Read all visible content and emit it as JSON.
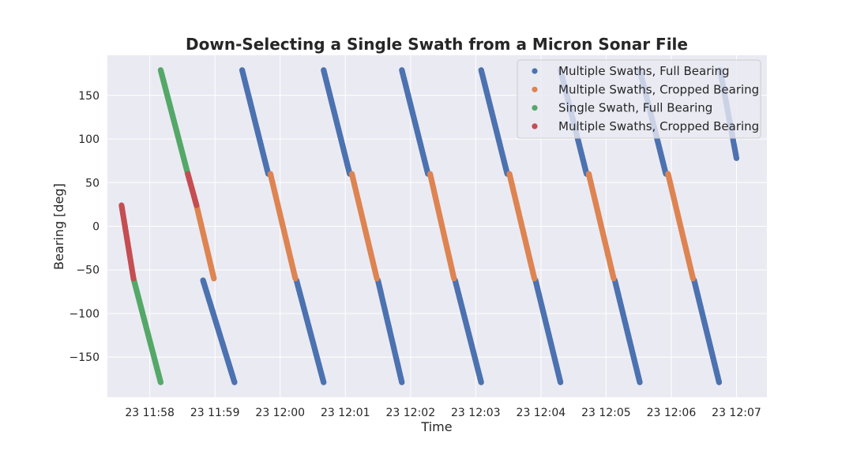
{
  "chart_data": {
    "type": "scatter",
    "title": "Down-Selecting a Single Swath from a Micron Sonar File",
    "xlabel": "Time",
    "ylabel": "Bearing [deg]",
    "xlim": [
      "11:57:21",
      "12:07:28"
    ],
    "ylim": [
      -196,
      196
    ],
    "grid": true,
    "legend_position": "top-right",
    "x_ticks": [
      {
        "time": "11:58:00",
        "label": "23 11:58"
      },
      {
        "time": "11:59:00",
        "label": "23 11:59"
      },
      {
        "time": "12:00:00",
        "label": "23 12:00"
      },
      {
        "time": "12:01:00",
        "label": "23 12:01"
      },
      {
        "time": "12:02:00",
        "label": "23 12:02"
      },
      {
        "time": "12:03:00",
        "label": "23 12:03"
      },
      {
        "time": "12:04:00",
        "label": "23 12:04"
      },
      {
        "time": "12:05:00",
        "label": "23 12:05"
      },
      {
        "time": "12:06:00",
        "label": "23 12:06"
      },
      {
        "time": "12:07:00",
        "label": "23 12:07"
      }
    ],
    "y_ticks": [
      {
        "value": 150,
        "label": "150"
      },
      {
        "value": 100,
        "label": "100"
      },
      {
        "value": 50,
        "label": "50"
      },
      {
        "value": 0,
        "label": "0"
      },
      {
        "value": -50,
        "label": "−50"
      },
      {
        "value": -100,
        "label": "−100"
      },
      {
        "value": -150,
        "label": "−150"
      }
    ],
    "series": [
      {
        "name": "Multiple Swaths, Full Bearing",
        "color": "#4c72b0",
        "segments": [
          {
            "t_start": "11:58:49",
            "t_end": "11:59:18",
            "b_start": -62,
            "b_end": -179
          },
          {
            "t_start": "11:59:25",
            "t_end": "11:59:49",
            "b_start": 179,
            "b_end": 60
          },
          {
            "t_start": "12:00:15",
            "t_end": "12:00:40",
            "b_start": -62,
            "b_end": -179
          },
          {
            "t_start": "12:00:40",
            "t_end": "12:01:04",
            "b_start": 179,
            "b_end": 60
          },
          {
            "t_start": "12:01:30",
            "t_end": "12:01:52",
            "b_start": -62,
            "b_end": -179
          },
          {
            "t_start": "12:01:52",
            "t_end": "12:02:16",
            "b_start": 179,
            "b_end": 60
          },
          {
            "t_start": "12:02:41",
            "t_end": "12:03:05",
            "b_start": -62,
            "b_end": -179
          },
          {
            "t_start": "12:03:05",
            "t_end": "12:03:29",
            "b_start": 179,
            "b_end": 60
          },
          {
            "t_start": "12:03:55",
            "t_end": "12:04:18",
            "b_start": -62,
            "b_end": -179
          },
          {
            "t_start": "12:04:18",
            "t_end": "12:04:42",
            "b_start": 179,
            "b_end": 60
          },
          {
            "t_start": "12:05:08",
            "t_end": "12:05:31",
            "b_start": -62,
            "b_end": -179
          },
          {
            "t_start": "12:05:31",
            "t_end": "12:05:55",
            "b_start": 179,
            "b_end": 60
          },
          {
            "t_start": "12:06:21",
            "t_end": "12:06:44",
            "b_start": -62,
            "b_end": -179
          },
          {
            "t_start": "12:06:45",
            "t_end": "12:07:00",
            "b_start": 179,
            "b_end": 78
          }
        ]
      },
      {
        "name": "Multiple Swaths, Cropped Bearing",
        "color": "#dd8452",
        "segments": [
          {
            "t_start": "11:58:43",
            "t_end": "11:58:59",
            "b_start": 24,
            "b_end": -60
          },
          {
            "t_start": "11:59:51",
            "t_end": "12:00:14",
            "b_start": 60,
            "b_end": -60
          },
          {
            "t_start": "12:01:06",
            "t_end": "12:01:29",
            "b_start": 60,
            "b_end": -60
          },
          {
            "t_start": "12:02:18",
            "t_end": "12:02:40",
            "b_start": 60,
            "b_end": -60
          },
          {
            "t_start": "12:03:31",
            "t_end": "12:03:54",
            "b_start": 60,
            "b_end": -60
          },
          {
            "t_start": "12:04:44",
            "t_end": "12:05:07",
            "b_start": 60,
            "b_end": -60
          },
          {
            "t_start": "12:05:57",
            "t_end": "12:06:20",
            "b_start": 60,
            "b_end": -60
          }
        ]
      },
      {
        "name": "Single Swath, Full Bearing",
        "color": "#55a868",
        "segments": [
          {
            "t_start": "11:57:45",
            "t_end": "11:58:10",
            "b_start": -60,
            "b_end": -179
          },
          {
            "t_start": "11:58:10",
            "t_end": "11:58:35",
            "b_start": 179,
            "b_end": 60
          }
        ]
      },
      {
        "name": "Multiple Swaths, Cropped Bearing",
        "color": "#c44e52",
        "segments": [
          {
            "t_start": "11:57:34",
            "t_end": "11:57:45",
            "b_start": 24,
            "b_end": -60
          },
          {
            "t_start": "11:58:35",
            "t_end": "11:58:43",
            "b_start": 60,
            "b_end": 24
          }
        ]
      }
    ]
  }
}
